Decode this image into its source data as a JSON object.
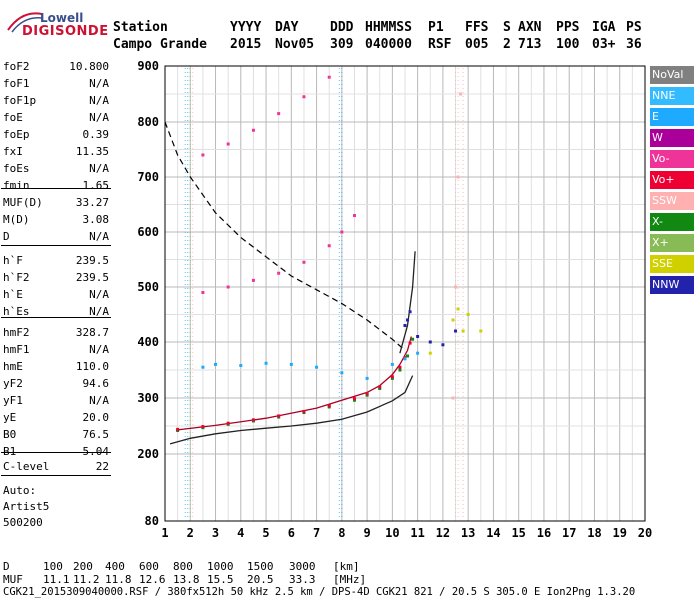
{
  "logo": {
    "line1": "Lowell",
    "line2": "DIGISONDE"
  },
  "header": {
    "row1": [
      "Station",
      "YYYY",
      "DAY",
      "DDD",
      "HHMMSS",
      "P1",
      "FFS",
      "S",
      "AXN",
      "PPS",
      "IGA",
      "PS"
    ],
    "row2": [
      "Campo Grande",
      "2015",
      "Nov05",
      "309",
      "040000",
      "RSF",
      "005",
      "2",
      "713",
      "100",
      "03+",
      "36"
    ]
  },
  "params_group1": [
    {
      "name": "foF2",
      "value": "10.800"
    },
    {
      "name": "foF1",
      "value": "N/A"
    },
    {
      "name": "foF1p",
      "value": "N/A"
    },
    {
      "name": "foE",
      "value": "N/A"
    },
    {
      "name": "foEp",
      "value": "0.39"
    },
    {
      "name": "fxI",
      "value": "11.35"
    },
    {
      "name": "foEs",
      "value": "N/A"
    },
    {
      "name": "fmin",
      "value": "1.65"
    }
  ],
  "params_group2": [
    {
      "name": "MUF(D)",
      "value": "33.27"
    },
    {
      "name": "M(D)",
      "value": "3.08"
    },
    {
      "name": "D",
      "value": "N/A"
    }
  ],
  "params_group3": [
    {
      "name": "h`F",
      "value": "239.5"
    },
    {
      "name": "h`F2",
      "value": "239.5"
    },
    {
      "name": "h`E",
      "value": "N/A"
    },
    {
      "name": "h`Es",
      "value": "N/A"
    }
  ],
  "params_group4": [
    {
      "name": "hmF2",
      "value": "328.7"
    },
    {
      "name": "hmF1",
      "value": "N/A"
    },
    {
      "name": "hmE",
      "value": "110.0"
    },
    {
      "name": "yF2",
      "value": "94.6"
    },
    {
      "name": "yF1",
      "value": "N/A"
    },
    {
      "name": "yE",
      "value": "20.0"
    },
    {
      "name": "B0",
      "value": "76.5"
    },
    {
      "name": "B1",
      "value": "5.04"
    }
  ],
  "params_group5": [
    {
      "name": "C-level",
      "value": "22"
    }
  ],
  "autoscale": {
    "line1": "Auto:",
    "line2": "Artist5",
    "line3": "500200"
  },
  "legend": [
    {
      "label": "NoVal",
      "bg": "#808080",
      "fg": "#ffffff"
    },
    {
      "label": "NNE",
      "bg": "#33bbff",
      "fg": "#ffffff"
    },
    {
      "label": "E",
      "bg": "#1eaaff",
      "fg": "#ffffff"
    },
    {
      "label": "W",
      "bg": "#aa0099",
      "fg": "#ffffff"
    },
    {
      "label": "Vo-",
      "bg": "#ee3399",
      "fg": "#ffffff"
    },
    {
      "label": "Vo+",
      "bg": "#ee0033",
      "fg": "#ffffff"
    },
    {
      "label": "SSW",
      "bg": "#ffb0b0",
      "fg": "#ffffff"
    },
    {
      "label": "X-",
      "bg": "#118811",
      "fg": "#ffffff"
    },
    {
      "label": "X+",
      "bg": "#88bb55",
      "fg": "#ffffff"
    },
    {
      "label": "SSE",
      "bg": "#d0d000",
      "fg": "#ffffff"
    },
    {
      "label": "NNW",
      "bg": "#2222aa",
      "fg": "#ffffff"
    }
  ],
  "footer": {
    "d_label": "D",
    "d_values": [
      "100",
      "200",
      "400",
      "600",
      "800",
      "1000",
      "1500",
      "3000",
      "[km]"
    ],
    "muf_label": "MUF",
    "muf_values": [
      "11.1",
      "11.2",
      "11.8",
      "12.6",
      "13.8",
      "15.5",
      "20.5",
      "33.3",
      "[MHz]"
    ],
    "info": "CGK21_2015309040000.RSF / 380fx512h 50 kHz 2.5 km / DPS-4D CGK21 821 / 20.5 S 305.0 E Ion2Png 1.3.20"
  },
  "chart_data": {
    "type": "scatter",
    "xlim": [
      1,
      20
    ],
    "ylim": [
      80,
      900
    ],
    "x_ticks": [
      1,
      2,
      3,
      4,
      5,
      6,
      7,
      8,
      9,
      10,
      11,
      12,
      13,
      14,
      15,
      16,
      17,
      18,
      19,
      20
    ],
    "y_ticks": [
      80,
      200,
      300,
      400,
      500,
      600,
      700,
      800,
      900
    ],
    "grid": true,
    "series": [
      {
        "name": "X-",
        "color": "#118811",
        "x": [
          1.5,
          2.5,
          3.5,
          4.5,
          5.5,
          6.5,
          7.5,
          8.5,
          9.0,
          9.5,
          10.0,
          10.3,
          10.6,
          10.8
        ],
        "y": [
          242,
          247,
          253,
          259,
          266,
          274,
          284,
          296,
          305,
          317,
          335,
          350,
          375,
          405
        ]
      },
      {
        "name": "Vo+",
        "color": "#ee0033",
        "x": [
          1.5,
          2.5,
          3.5,
          4.5,
          5.5,
          6.5,
          7.5,
          8.5,
          9.0,
          9.5,
          10.0,
          10.3,
          10.5,
          10.7
        ],
        "y": [
          244,
          249,
          255,
          261,
          268,
          276,
          286,
          299,
          308,
          320,
          338,
          355,
          372,
          398
        ]
      },
      {
        "name": "Vo-",
        "color": "#ee3399",
        "x": [
          2.5,
          3.5,
          4.5,
          5.5,
          6.5,
          7.5,
          8.0,
          8.5
        ],
        "y": [
          490,
          500,
          512,
          525,
          545,
          575,
          600,
          630
        ]
      },
      {
        "name": "Vo-",
        "color": "#ee3399",
        "x": [
          2.5,
          3.5,
          4.5,
          5.5,
          6.5,
          7.5
        ],
        "y": [
          740,
          760,
          785,
          815,
          845,
          880
        ]
      },
      {
        "name": "E",
        "color": "#1eaaff",
        "x": [
          2.5,
          3.0,
          4.0,
          5.0,
          6.0,
          7.0,
          8.0,
          9.0,
          10.0,
          10.5,
          11.0
        ],
        "y": [
          355,
          360,
          358,
          362,
          360,
          355,
          345,
          335,
          360,
          370,
          380
        ]
      },
      {
        "name": "NNW",
        "color": "#2222aa",
        "x": [
          10.5,
          10.6,
          10.7,
          11.0,
          11.5,
          12.0,
          12.5
        ],
        "y": [
          430,
          440,
          455,
          410,
          400,
          395,
          420
        ]
      },
      {
        "name": "SSE",
        "color": "#d0d000",
        "x": [
          11.5,
          12.4,
          12.6,
          12.8,
          13.0,
          13.5
        ],
        "y": [
          380,
          440,
          460,
          420,
          450,
          420
        ]
      },
      {
        "name": "SSW",
        "color": "#ffb0b0",
        "x": [
          12.4,
          12.5,
          12.6,
          12.7
        ],
        "y": [
          300,
          500,
          700,
          850
        ]
      }
    ],
    "lines": [
      {
        "kind": "dashed",
        "color": "#000000",
        "x": [
          1,
          1.5,
          2,
          3,
          4,
          5,
          6,
          7,
          8,
          9,
          10,
          10.5
        ],
        "y": [
          800,
          740,
          700,
          635,
          590,
          555,
          520,
          495,
          470,
          440,
          405,
          385
        ]
      },
      {
        "kind": "solid",
        "color": "#222222",
        "x": [
          1.2,
          2,
          3,
          4,
          5,
          6,
          7,
          8,
          9,
          10,
          10.5,
          10.8
        ],
        "y": [
          218,
          228,
          236,
          242,
          246,
          250,
          255,
          262,
          275,
          295,
          310,
          340
        ]
      },
      {
        "kind": "solid",
        "color": "#222222",
        "x": [
          10.3,
          10.6,
          10.8,
          10.9
        ],
        "y": [
          380,
          430,
          500,
          565
        ]
      },
      {
        "kind": "solid",
        "color": "#aa0022",
        "x": [
          1.5,
          3,
          5,
          7,
          8,
          9,
          9.5,
          10,
          10.3,
          10.6,
          10.75
        ],
        "y": [
          243,
          251,
          264,
          282,
          296,
          310,
          322,
          342,
          360,
          385,
          410
        ]
      }
    ]
  }
}
